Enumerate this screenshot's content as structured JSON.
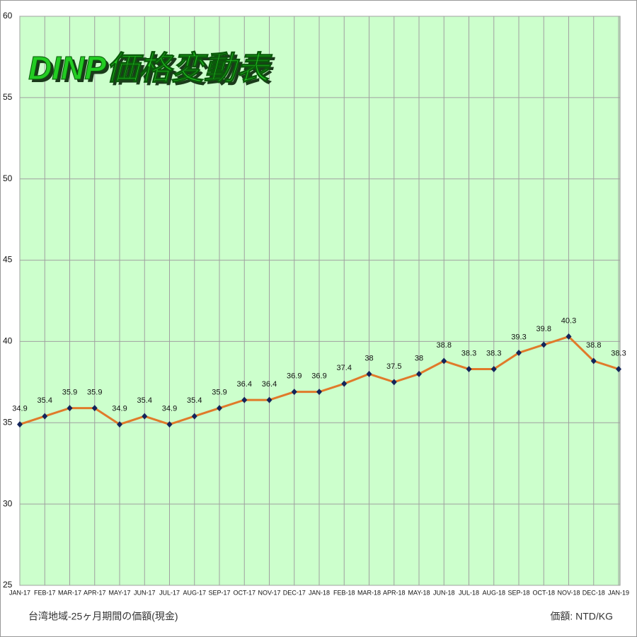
{
  "chart_data": {
    "type": "line",
    "title": "DINP価格変動表",
    "footer_left": "台湾地域-25ヶ月期間の価額(現金)",
    "footer_right": "価額: NTD/KG",
    "categories": [
      "JAN-17",
      "FEB-17",
      "MAR-17",
      "APR-17",
      "MAY-17",
      "JUN-17",
      "JUL-17",
      "AUG-17",
      "SEP-17",
      "OCT-17",
      "NOV-17",
      "DEC-17",
      "JAN-18",
      "FEB-18",
      "MAR-18",
      "APR-18",
      "MAY-18",
      "JUN-18",
      "JUL-18",
      "AUG-18",
      "SEP-18",
      "OCT-18",
      "NOV-18",
      "DEC-18",
      "JAN-19"
    ],
    "values": [
      34.9,
      35.4,
      35.9,
      35.9,
      34.9,
      35.4,
      34.9,
      35.4,
      35.9,
      36.4,
      36.4,
      36.9,
      36.9,
      37.4,
      38,
      37.5,
      38,
      38.8,
      38.3,
      38.3,
      39.3,
      39.8,
      40.3,
      38.8,
      38.3
    ],
    "color": "#e07a2a",
    "marker_color": "#13245a",
    "background": "#ccffcc",
    "ylim": [
      25,
      60
    ],
    "yticks": [
      25,
      30,
      35,
      40,
      45,
      50,
      55,
      60
    ],
    "grid": true
  }
}
